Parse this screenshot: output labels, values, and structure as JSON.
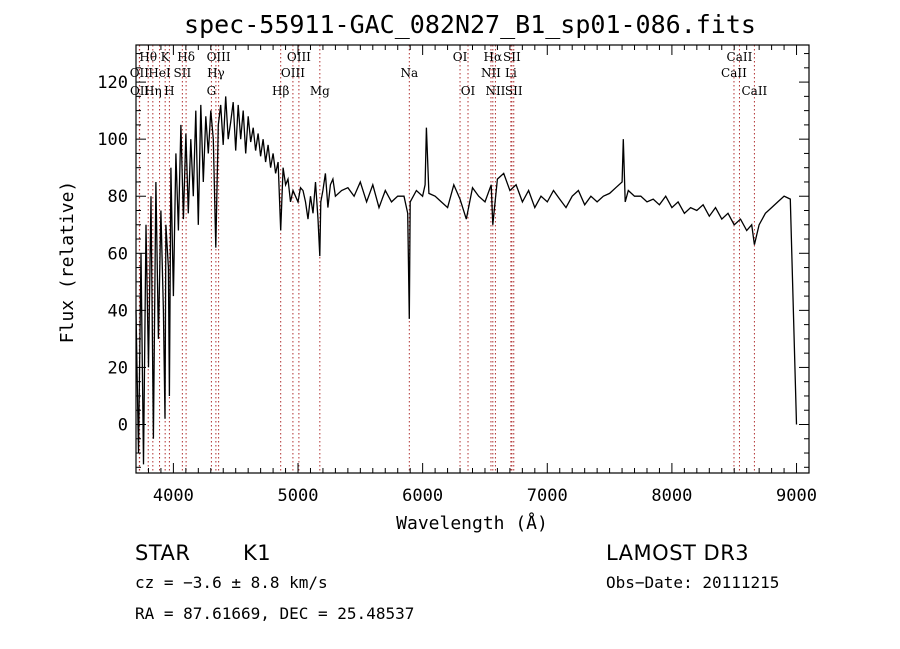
{
  "chart_data": {
    "type": "line",
    "title": "spec-55911-GAC_082N27_B1_sp01-086.fits",
    "xlabel": "Wavelength (Å)",
    "ylabel": "Flux (relative)",
    "xlim": [
      3700,
      9100
    ],
    "ylim": [
      -17,
      133
    ],
    "xticks": [
      4000,
      5000,
      6000,
      7000,
      8000,
      9000
    ],
    "yticks": [
      0,
      20,
      40,
      60,
      80,
      100,
      120
    ],
    "grid": false,
    "spectrum": {
      "x": [
        3700,
        3720,
        3740,
        3760,
        3780,
        3800,
        3820,
        3840,
        3860,
        3880,
        3900,
        3920,
        3933,
        3940,
        3960,
        3968,
        3980,
        4000,
        4020,
        4040,
        4060,
        4080,
        4100,
        4120,
        4140,
        4160,
        4180,
        4200,
        4220,
        4240,
        4260,
        4280,
        4300,
        4320,
        4340,
        4360,
        4380,
        4400,
        4420,
        4440,
        4460,
        4480,
        4500,
        4520,
        4540,
        4560,
        4580,
        4600,
        4620,
        4640,
        4660,
        4680,
        4700,
        4720,
        4740,
        4760,
        4780,
        4800,
        4820,
        4840,
        4861,
        4880,
        4900,
        4920,
        4940,
        4960,
        4980,
        5000,
        5020,
        5040,
        5060,
        5080,
        5100,
        5120,
        5140,
        5160,
        5175,
        5183,
        5200,
        5220,
        5240,
        5260,
        5280,
        5300,
        5350,
        5400,
        5450,
        5500,
        5550,
        5600,
        5650,
        5700,
        5750,
        5800,
        5850,
        5880,
        5893,
        5900,
        5950,
        6000,
        6020,
        6030,
        6050,
        6100,
        6150,
        6200,
        6250,
        6300,
        6350,
        6400,
        6450,
        6500,
        6550,
        6563,
        6600,
        6650,
        6700,
        6750,
        6800,
        6850,
        6900,
        6950,
        7000,
        7050,
        7100,
        7150,
        7200,
        7250,
        7300,
        7350,
        7400,
        7450,
        7500,
        7550,
        7600,
        7610,
        7625,
        7650,
        7700,
        7750,
        7800,
        7850,
        7900,
        7950,
        8000,
        8050,
        8100,
        8150,
        8200,
        8250,
        8300,
        8350,
        8400,
        8450,
        8500,
        8550,
        8600,
        8640,
        8662,
        8700,
        8750,
        8800,
        8850,
        8900,
        8950,
        9000
      ],
      "y": [
        40,
        -10,
        60,
        -14,
        70,
        20,
        80,
        -5,
        85,
        30,
        75,
        40,
        2,
        70,
        55,
        10,
        90,
        45,
        95,
        68,
        105,
        72,
        102,
        74,
        100,
        80,
        110,
        70,
        112,
        85,
        108,
        95,
        110,
        100,
        62,
        105,
        112,
        98,
        115,
        100,
        106,
        113,
        96,
        112,
        100,
        110,
        95,
        108,
        99,
        104,
        96,
        102,
        94,
        100,
        92,
        98,
        90,
        95,
        88,
        92,
        68,
        90,
        84,
        86,
        78,
        82,
        80,
        78,
        83,
        82,
        78,
        72,
        80,
        74,
        85,
        72,
        59,
        78,
        82,
        88,
        76,
        84,
        86,
        80,
        82,
        83,
        80,
        85,
        78,
        84,
        76,
        82,
        78,
        80,
        80,
        74,
        37,
        78,
        82,
        80,
        84,
        104,
        81,
        80,
        78,
        76,
        84,
        79,
        72,
        83,
        80,
        78,
        84,
        70,
        86,
        88,
        82,
        84,
        78,
        82,
        76,
        80,
        78,
        82,
        79,
        76,
        80,
        82,
        77,
        80,
        78,
        80,
        81,
        83,
        85,
        100,
        78,
        82,
        80,
        80,
        78,
        79,
        77,
        80,
        76,
        78,
        74,
        76,
        75,
        77,
        73,
        76,
        72,
        74,
        70,
        72,
        68,
        70,
        63,
        70,
        74,
        76,
        78,
        80,
        79,
        0
      ]
    },
    "lines": [
      {
        "name": "Hθ",
        "wave": 3798,
        "row": 1
      },
      {
        "name": "OII",
        "wave": 3727,
        "row": 2
      },
      {
        "name": "OII",
        "wave": 3729,
        "row": 3
      },
      {
        "name": "Hη",
        "wave": 3835,
        "row": 3
      },
      {
        "name": "K",
        "wave": 3934,
        "row": 1
      },
      {
        "name": "HeI",
        "wave": 3889,
        "row": 2
      },
      {
        "name": "H",
        "wave": 3968,
        "row": 3
      },
      {
        "name": "Hδ",
        "wave": 4102,
        "row": 1
      },
      {
        "name": "SII",
        "wave": 4072,
        "row": 2
      },
      {
        "name": "OIII",
        "wave": 4363,
        "row": 1
      },
      {
        "name": "Hγ",
        "wave": 4341,
        "row": 2
      },
      {
        "name": "G",
        "wave": 4305,
        "row": 3
      },
      {
        "name": "Hβ",
        "wave": 4861,
        "row": 3
      },
      {
        "name": "OIII",
        "wave": 5007,
        "row": 1
      },
      {
        "name": "OIII",
        "wave": 4959,
        "row": 2
      },
      {
        "name": "Mg",
        "wave": 5175,
        "row": 3
      },
      {
        "name": "Na",
        "wave": 5893,
        "row": 2
      },
      {
        "name": "OI",
        "wave": 6300,
        "row": 1
      },
      {
        "name": "OI",
        "wave": 6364,
        "row": 3
      },
      {
        "name": "Hα",
        "wave": 6563,
        "row": 1
      },
      {
        "name": "SII",
        "wave": 6716,
        "row": 1
      },
      {
        "name": "NII",
        "wave": 6548,
        "row": 2
      },
      {
        "name": "Li",
        "wave": 6708,
        "row": 2
      },
      {
        "name": "NII",
        "wave": 6584,
        "row": 3
      },
      {
        "name": "SII",
        "wave": 6731,
        "row": 3
      },
      {
        "name": "CaII",
        "wave": 8542,
        "row": 1
      },
      {
        "name": "CaII",
        "wave": 8498,
        "row": 2
      },
      {
        "name": "CaII",
        "wave": 8662,
        "row": 3
      }
    ]
  },
  "info": {
    "object_class": "STAR",
    "subclass": "K1",
    "survey": "LAMOST DR3",
    "redshift": "cz = −3.6 ± 8.8 km/s",
    "obs_date": "Obs−Date: 20111215",
    "coords": "RA =  87.61669, DEC =  25.48537"
  },
  "colors": {
    "spectrum": "#000000",
    "line_marker": "#b03030",
    "axes": "#000000",
    "background": "#ffffff"
  }
}
